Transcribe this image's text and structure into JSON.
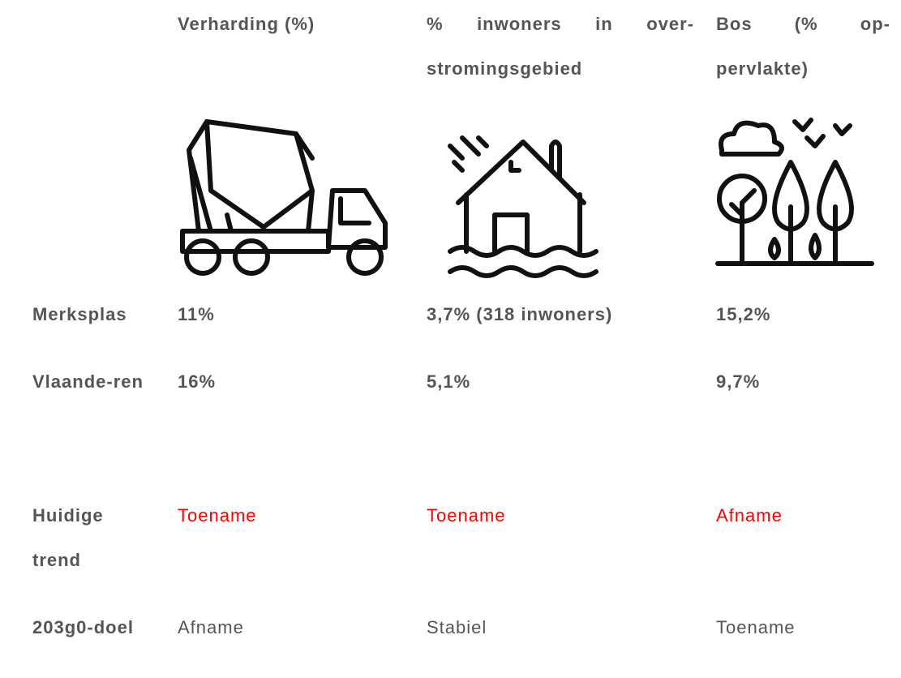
{
  "table": {
    "headers": [
      "Verharding (%)",
      "% inwoners in over-stromingsgebied",
      "Bos (% op-pervlakte)"
    ],
    "rows": [
      {
        "label": "Merksplas",
        "cells": [
          "11%",
          "3,7% (318 inwoners)",
          "15,2%"
        ]
      },
      {
        "label": "Vlaande-ren",
        "cells": [
          "16%",
          "5,1%",
          "9,7%"
        ]
      },
      {
        "label": "Huidige trend",
        "cells": [
          "Toename",
          "Toename",
          "Afname"
        ],
        "color": "#ff0000"
      },
      {
        "label": "203g0-doel",
        "cells": [
          "Afname",
          "Stabiel",
          "Toename"
        ]
      }
    ]
  }
}
